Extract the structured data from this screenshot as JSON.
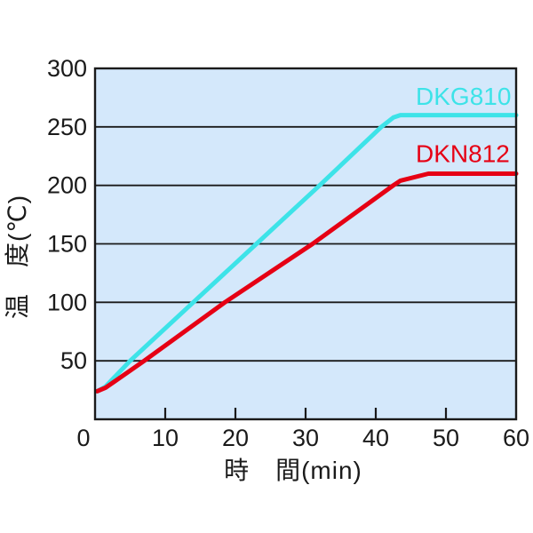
{
  "chart_data": {
    "type": "line",
    "title": "",
    "xlabel": "時　間(min)",
    "ylabel": "温　度(℃)",
    "xlim": [
      0,
      60
    ],
    "ylim": [
      0,
      300
    ],
    "x_ticks": [
      0,
      10,
      20,
      30,
      40,
      50,
      60
    ],
    "x_tick_label_offsets": {
      "0": -13
    },
    "y_ticks": [
      50,
      100,
      150,
      200,
      250,
      300
    ],
    "grid": "horizontal-only",
    "legend_position": "inline-labels",
    "plot_background": "#D4E8FB",
    "axis_color": "#1A1A1A",
    "series": [
      {
        "name": "DKG810",
        "color": "#3DE3E8",
        "points": [
          [
            0.3,
            24
          ],
          [
            1.5,
            28
          ],
          [
            5,
            50
          ],
          [
            14,
            100
          ],
          [
            23,
            150
          ],
          [
            32,
            200
          ],
          [
            40.8,
            250
          ],
          [
            42.5,
            258
          ],
          [
            43.5,
            260
          ],
          [
            60,
            260
          ]
        ],
        "label_pos": [
          45.7,
          269
        ],
        "plateau_c": 260
      },
      {
        "name": "DKN812",
        "color": "#E60014",
        "points": [
          [
            0.3,
            24
          ],
          [
            1.5,
            27
          ],
          [
            7,
            50
          ],
          [
            18.5,
            100
          ],
          [
            31,
            150
          ],
          [
            42.5,
            200
          ],
          [
            43.5,
            204
          ],
          [
            47.5,
            210
          ],
          [
            60,
            210
          ]
        ],
        "label_pos": [
          45.7,
          220
        ],
        "plateau_c": 210
      }
    ]
  }
}
